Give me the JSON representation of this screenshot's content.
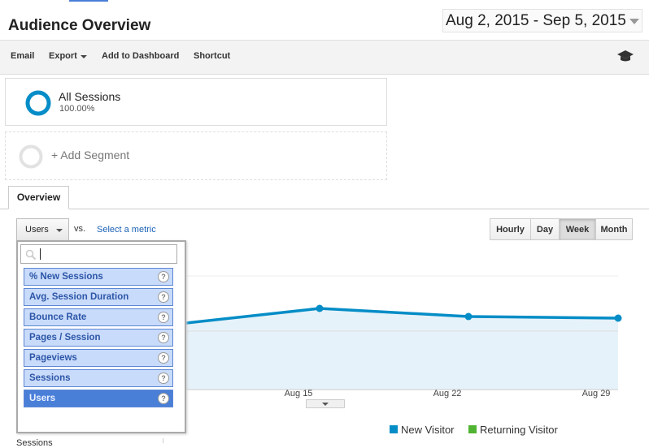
{
  "header": {
    "title": "Audience Overview",
    "date_range": "Aug 2, 2015 - Sep 5, 2015"
  },
  "toolbar": [
    "Email",
    "Export",
    "Add to Dashboard",
    "Shortcut"
  ],
  "segments": {
    "name": "All Sessions",
    "percent": "100.00%",
    "add": "+ Add Segment"
  },
  "tabs": [
    "Overview"
  ],
  "metric_selector": {
    "selected": "Users",
    "vs": "vs.",
    "compare": "Select a metric"
  },
  "granularity": [
    "Hourly",
    "Day",
    "Week",
    "Month"
  ],
  "metric_options": [
    "% New Sessions",
    "Avg. Session Duration",
    "Bounce Rate",
    "Pages / Session",
    "Pageviews",
    "Sessions",
    "Users"
  ],
  "x_labels": [
    "Aug 15",
    "Aug 22",
    "Aug 29"
  ],
  "legend": [
    "New Visitor",
    "Returning Visitor"
  ],
  "footer": {
    "metric": "Sessions"
  }
}
